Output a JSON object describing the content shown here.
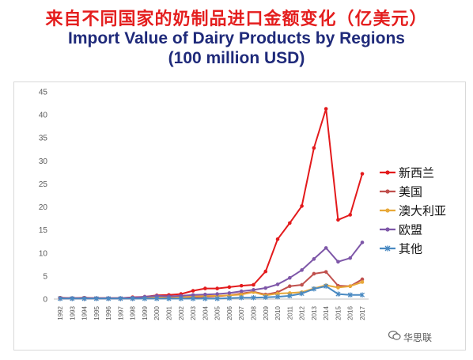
{
  "title_cn": "来自不同国家的奶制品进口金额变化（亿美元）",
  "title_en_line1": "Import Value of Dairy Products by Regions",
  "title_en_line2": "(100 million USD)",
  "watermark": "华思联",
  "chart_data": {
    "type": "line",
    "title": "Import Value of Dairy Products by Regions (100 million USD)",
    "xlabel": "",
    "ylabel": "",
    "ylim": [
      0,
      45
    ],
    "yticks": [
      0,
      5,
      10,
      15,
      20,
      25,
      30,
      35,
      40,
      45
    ],
    "grid": false,
    "legend_position": "right",
    "x": [
      "1992",
      "1993",
      "1994",
      "1995",
      "1996",
      "1997",
      "1998",
      "1999",
      "2000",
      "2001",
      "2002",
      "2003",
      "2004",
      "2005",
      "2006",
      "2007",
      "2008",
      "2009",
      "2010",
      "2011",
      "2012",
      "2013",
      "2014",
      "2015",
      "2016",
      "2017"
    ],
    "series": [
      {
        "name": "新西兰",
        "color": "#e31a1c",
        "marker": "circle",
        "values": [
          0.3,
          0.2,
          0.3,
          0.2,
          0.2,
          0.2,
          0.4,
          0.5,
          0.8,
          0.9,
          1.1,
          1.8,
          2.3,
          2.3,
          2.6,
          2.9,
          3.1,
          6.0,
          13.0,
          16.5,
          20.2,
          32.8,
          41.3,
          17.2,
          18.3,
          27.2
        ]
      },
      {
        "name": "美国",
        "color": "#c0504d",
        "marker": "circle",
        "values": [
          0.1,
          0.1,
          0.1,
          0.1,
          0.1,
          0.1,
          0.1,
          0.2,
          0.2,
          0.2,
          0.3,
          0.4,
          0.5,
          0.6,
          0.8,
          1.2,
          1.6,
          1.0,
          1.5,
          2.8,
          3.1,
          5.5,
          5.9,
          2.9,
          2.8,
          4.3
        ]
      },
      {
        "name": "澳大利亚",
        "color": "#e8a838",
        "marker": "circle",
        "values": [
          0.2,
          0.2,
          0.2,
          0.2,
          0.2,
          0.2,
          0.3,
          0.3,
          0.4,
          0.5,
          0.4,
          0.6,
          0.7,
          0.7,
          0.8,
          1.0,
          1.5,
          0.8,
          1.2,
          1.3,
          1.5,
          2.3,
          3.0,
          2.5,
          2.8,
          3.7
        ]
      },
      {
        "name": "欧盟",
        "color": "#7e57a8",
        "marker": "circle",
        "values": [
          0.2,
          0.2,
          0.2,
          0.2,
          0.2,
          0.2,
          0.3,
          0.5,
          0.7,
          0.6,
          0.7,
          0.9,
          1.0,
          1.1,
          1.3,
          1.7,
          2.0,
          2.4,
          3.2,
          4.6,
          6.3,
          8.7,
          11.1,
          8.1,
          8.9,
          12.3
        ]
      },
      {
        "name": "其他",
        "color": "#4a8ac2",
        "marker": "star",
        "values": [
          0.1,
          0.1,
          0.1,
          0.1,
          0.1,
          0.1,
          0.1,
          0.1,
          0.1,
          0.1,
          0.1,
          0.1,
          0.1,
          0.1,
          0.2,
          0.3,
          0.3,
          0.4,
          0.5,
          0.7,
          1.2,
          2.2,
          2.8,
          1.1,
          0.9,
          0.9
        ]
      }
    ]
  }
}
